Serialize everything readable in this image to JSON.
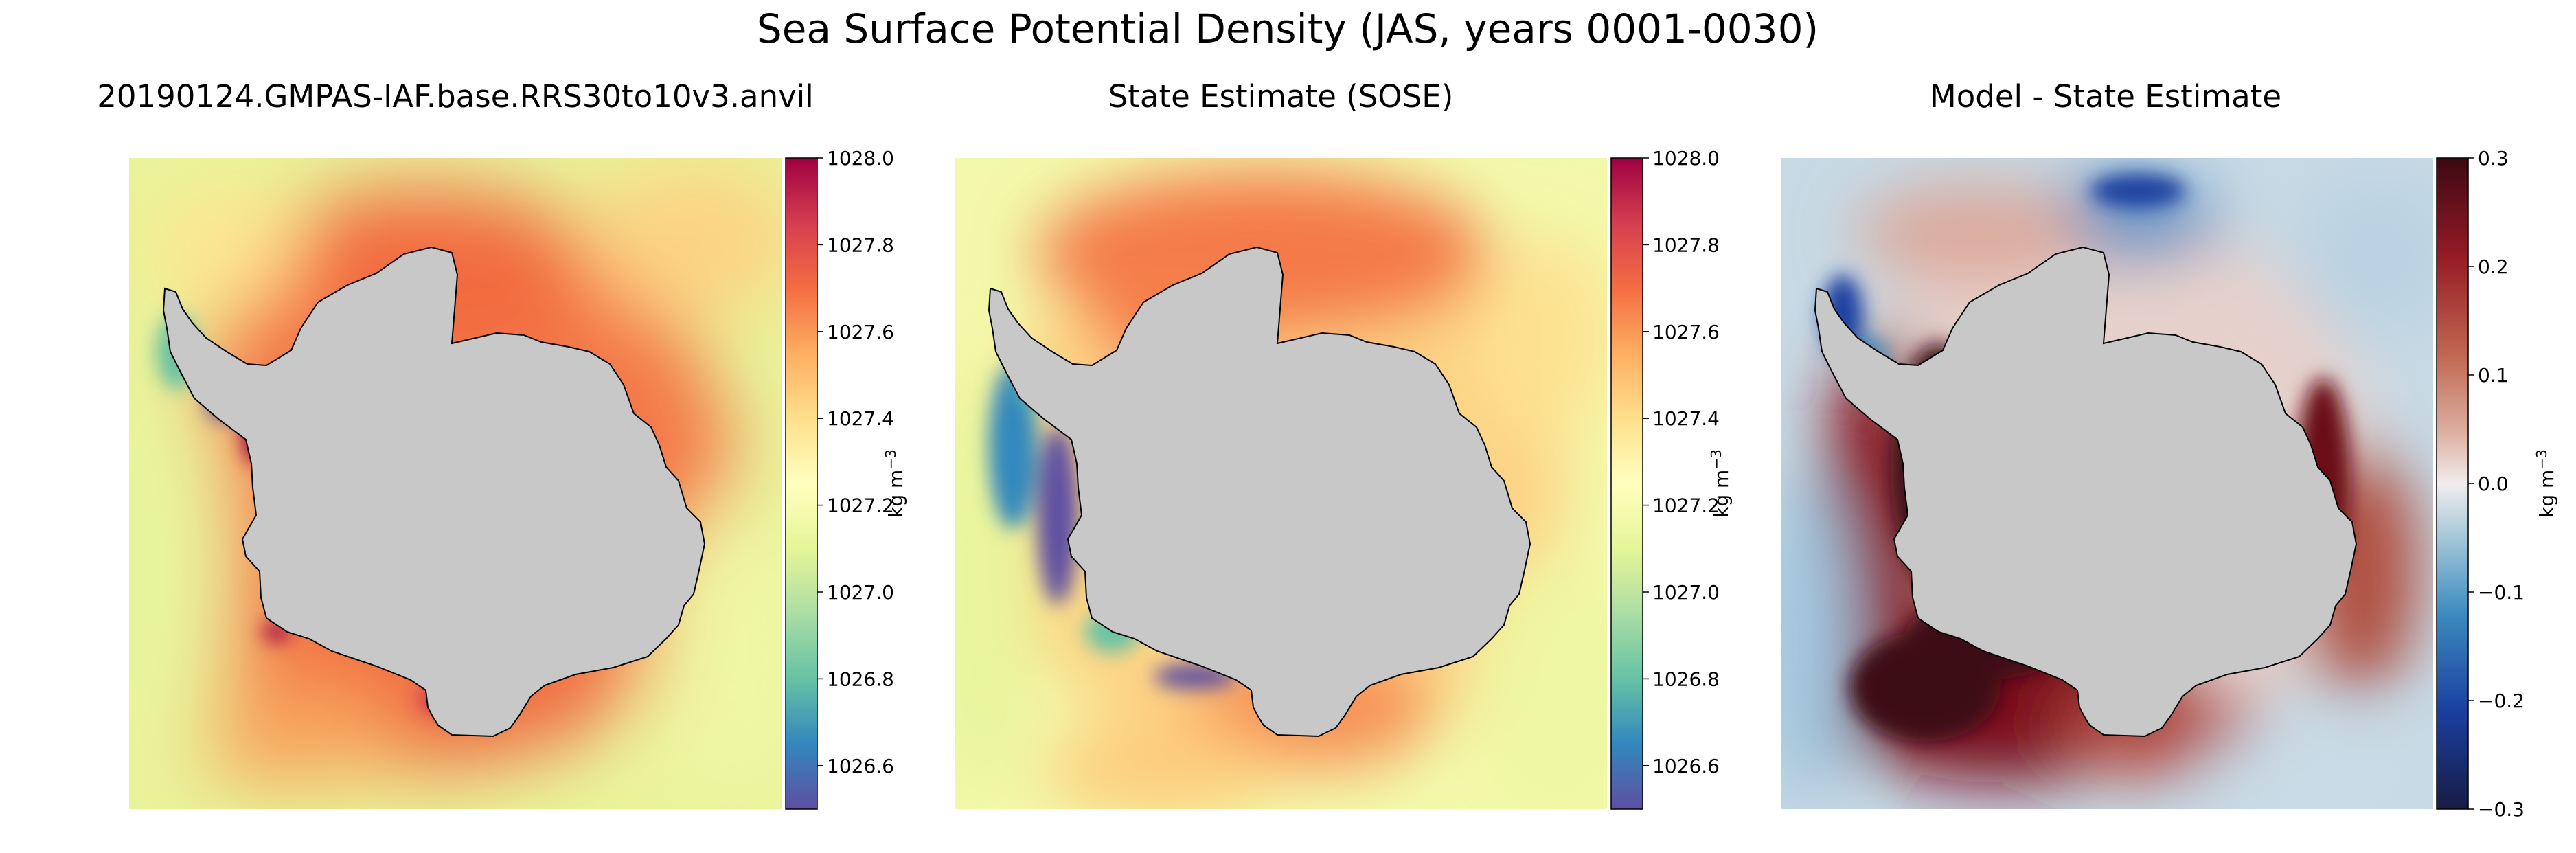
{
  "figure": {
    "title": "Sea Surface Potential Density (JAS, years 0001-0030)"
  },
  "colors": {
    "land": "#c8c8c8",
    "coastline": "#000000"
  },
  "chart_data": [
    {
      "type": "heatmap",
      "title": "20190124.GMPAS-IAF.base.RRS30to10v3.anvil",
      "colorbar": {
        "label": "kg m$^{-3}$",
        "label_text": "kg m",
        "label_sup": "−3",
        "range": [
          1026.5,
          1028.0
        ],
        "ticks": [
          "1026.6",
          "1026.8",
          "1027.0",
          "1027.2",
          "1027.4",
          "1027.6",
          "1027.8",
          "1028.0"
        ],
        "tick_values": [
          1026.6,
          1026.8,
          1027.0,
          1027.2,
          1027.4,
          1027.6,
          1027.8,
          1028.0
        ],
        "colormap": "Spectral_r"
      },
      "field_summary": "Dense water (about 1027.6-1027.9) ringing Antarctica; lighter water (about 1027.0-1027.3) toward the outer edges; very light water (about 1026.6) on the western Antarctic Peninsula shelf"
    },
    {
      "type": "heatmap",
      "title": "State Estimate (SOSE)",
      "colorbar": {
        "label": "kg m$^{-3}$",
        "label_text": "kg m",
        "label_sup": "−3",
        "range": [
          1026.5,
          1028.0
        ],
        "ticks": [
          "1026.6",
          "1026.8",
          "1027.0",
          "1027.2",
          "1027.4",
          "1027.6",
          "1027.8",
          "1028.0"
        ],
        "tick_values": [
          1026.6,
          1026.8,
          1027.0,
          1027.2,
          1027.4,
          1027.6,
          1027.8,
          1028.0
        ],
        "colormap": "Spectral_r"
      },
      "field_summary": "Dense water (about 1027.6-1027.7) north of the Ross Sea and Weddell Sea; lighter water (about 1027.3-1027.5) near the coast; fresh water (about 1026.6) along the West Antarctic coast"
    },
    {
      "type": "heatmap",
      "title": "Model - State Estimate",
      "colorbar": {
        "label": "kg m$^{-3}$",
        "label_text": "kg m",
        "label_sup": "−3",
        "range": [
          -0.3,
          0.3
        ],
        "ticks": [
          "−0.3",
          "−0.2",
          "−0.1",
          "0.0",
          "0.1",
          "0.2",
          "0.3"
        ],
        "tick_values": [
          -0.3,
          -0.2,
          -0.1,
          0.0,
          0.1,
          0.2,
          0.3
        ],
        "colormap": "balance"
      },
      "field_summary": "Model denser than the state estimate (about +0.3) in the Ross, Amundsen and Bellingshausen seas and along the coast; model lighter (about -0.1 to -0.2) in the open ocean and on the Antarctic Peninsula shelf"
    }
  ]
}
